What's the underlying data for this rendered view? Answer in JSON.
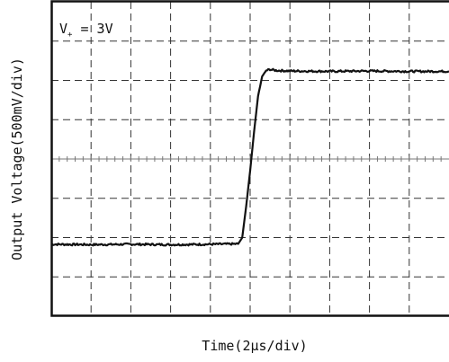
{
  "chart_data": {
    "type": "line",
    "title": "",
    "xlabel": "Time(2µs/div)",
    "ylabel": "Output Voltage(500mV/div)",
    "annotation": {
      "main": "V",
      "subscript": "+",
      "rest": " = 3V"
    },
    "x_unit_per_div": "2µs",
    "y_unit_per_div": "500mV",
    "xlim_divisions": [
      0,
      10
    ],
    "ylim_divisions": [
      -4,
      4
    ],
    "grid": true,
    "series": [
      {
        "x": [
          0,
          1,
          2,
          3,
          4,
          4.7,
          4.8,
          4.9,
          5.0,
          5.1,
          5.2,
          5.3,
          5.4,
          5.5,
          5.6,
          5.7,
          6,
          7,
          8,
          9,
          10
        ],
        "y": [
          -2.17,
          -2.18,
          -2.17,
          -2.18,
          -2.17,
          -2.16,
          -2.0,
          -1.2,
          -0.3,
          0.7,
          1.6,
          2.1,
          2.25,
          2.28,
          2.26,
          2.25,
          2.24,
          2.23,
          2.24,
          2.23,
          2.23
        ]
      }
    ],
    "colors": {
      "trace": "#111111",
      "frame": "#111111",
      "grid": "#333333",
      "centerline": "#777777"
    }
  }
}
